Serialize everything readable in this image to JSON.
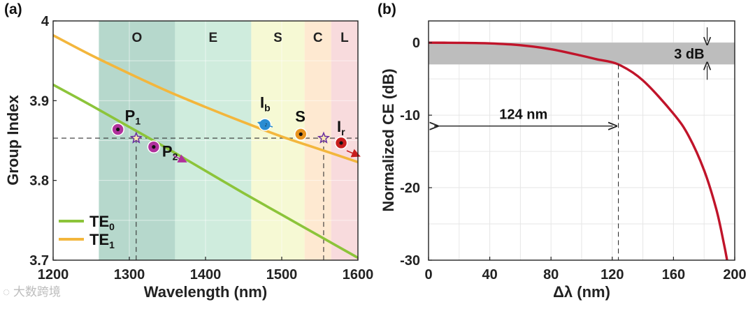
{
  "watermark": "大数跨境",
  "chart_data": [
    {
      "panel_label": "(a)",
      "type": "line",
      "xlabel": "Wavelength (nm)",
      "ylabel": "Group Index",
      "xlim": [
        1200,
        1600
      ],
      "ylim": [
        3.7,
        4.0
      ],
      "xticks": [
        1200,
        1300,
        1400,
        1500,
        1600
      ],
      "xtick_labels": [
        "1200",
        "1300",
        "1400",
        "1500",
        "1600"
      ],
      "yticks": [
        3.7,
        3.8,
        3.9,
        4.0
      ],
      "ytick_labels": [
        "3.7",
        "3.8",
        "3.9",
        "4"
      ],
      "bands": [
        {
          "label": "O",
          "from": 1260,
          "to": 1360,
          "color": "#9dcbbb"
        },
        {
          "label": "E",
          "from": 1360,
          "to": 1460,
          "color": "#bfe6d2"
        },
        {
          "label": "S",
          "from": 1460,
          "to": 1530,
          "color": "#f3f7c6"
        },
        {
          "label": "C",
          "from": 1530,
          "to": 1565,
          "color": "#fde1c2"
        },
        {
          "label": "L",
          "from": 1565,
          "to": 1600,
          "color": "#f6cfd2"
        }
      ],
      "series": [
        {
          "name": "TE",
          "subscript": "0",
          "color": "#8cc43a",
          "x": [
            1200,
            1250,
            1300,
            1350,
            1400,
            1450,
            1500,
            1550,
            1600
          ],
          "y": [
            3.92,
            3.894,
            3.867,
            3.84,
            3.812,
            3.784,
            3.757,
            3.73,
            3.703
          ]
        },
        {
          "name": "TE",
          "subscript": "1",
          "color": "#f3b63c",
          "x": [
            1200,
            1250,
            1300,
            1350,
            1400,
            1450,
            1500,
            1550,
            1600
          ],
          "y": [
            3.982,
            3.957,
            3.934,
            3.912,
            3.892,
            3.873,
            3.855,
            3.839,
            3.823
          ]
        }
      ],
      "reference_line_y": 3.853,
      "reference_vlines_x": [
        1309,
        1555
      ],
      "points": [
        {
          "label": "P",
          "subscript": "1",
          "x": 1285,
          "y": 3.864,
          "color": "#b0309c"
        },
        {
          "label": "P",
          "subscript": "2",
          "x": 1332,
          "y": 3.842,
          "color": "#b0309c"
        },
        {
          "label": "I",
          "subscript": "b",
          "x": 1478,
          "y": 3.87,
          "color": "#2a8cd2"
        },
        {
          "label": "S",
          "subscript": "",
          "x": 1525,
          "y": 3.858,
          "color": "#e8931e"
        },
        {
          "label": "I",
          "subscript": "r",
          "x": 1578,
          "y": 3.847,
          "color": "#c81e1e"
        }
      ],
      "stars": [
        {
          "x": 1309,
          "y": 3.853
        },
        {
          "x": 1555,
          "y": 3.853
        }
      ]
    },
    {
      "panel_label": "(b)",
      "type": "line",
      "xlabel": "Δλ (nm)",
      "ylabel": "Normalized CE (dB)",
      "xlim": [
        0,
        200
      ],
      "ylim": [
        -30,
        3
      ],
      "xticks": [
        0,
        40,
        80,
        120,
        160,
        200
      ],
      "xtick_labels": [
        "0",
        "40",
        "80",
        "120",
        "160",
        "200"
      ],
      "yticks": [
        0,
        -10,
        -20,
        -30
      ],
      "ytick_labels": [
        "0",
        "-10",
        "-20",
        "-30"
      ],
      "series": [
        {
          "name": "Normalized CE",
          "color": "#c0142a",
          "x": [
            0,
            20,
            40,
            60,
            80,
            100,
            110,
            124,
            140,
            160,
            170,
            180,
            188,
            193,
            195
          ],
          "y": [
            0,
            -0.02,
            -0.1,
            -0.35,
            -0.9,
            -1.8,
            -2.3,
            -3.0,
            -5.2,
            -9.8,
            -12.9,
            -17.6,
            -23.0,
            -27.8,
            -30
          ]
        }
      ],
      "shaded_band": {
        "from_db": 0,
        "to_db": -3,
        "label": "3 dB"
      },
      "bandwidth_annotation": {
        "label": "124 nm",
        "from": 0,
        "to": 124
      }
    }
  ]
}
